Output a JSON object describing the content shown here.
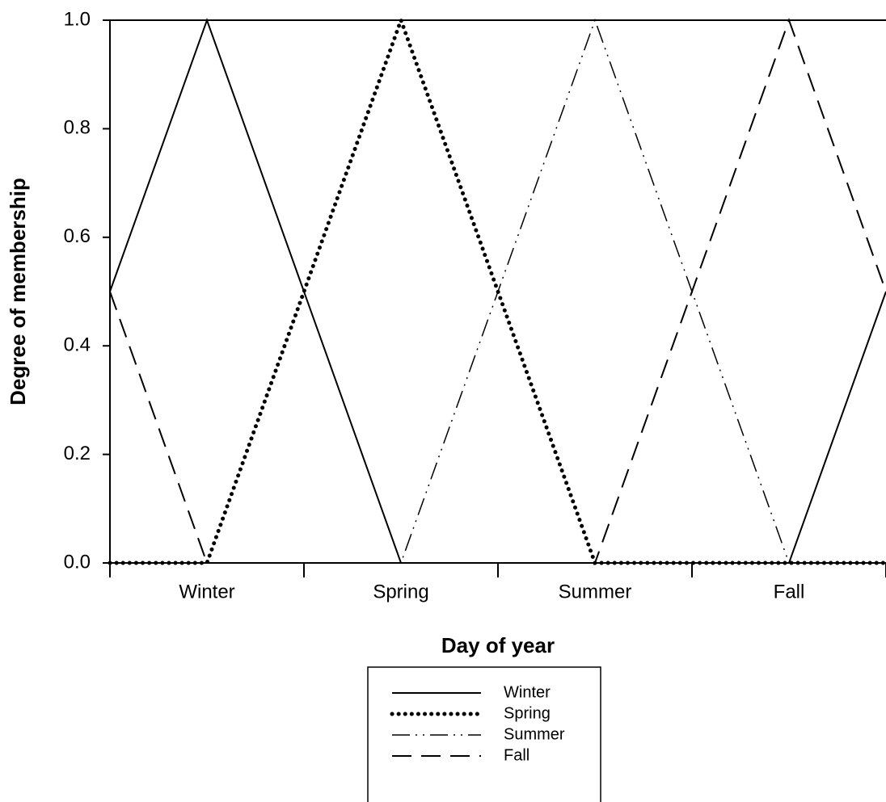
{
  "chart_data": {
    "type": "line",
    "ylabel": "Degree of membership",
    "xlabel": "Day of year",
    "categories": [
      "Winter",
      "Spring",
      "Summer",
      "Fall"
    ],
    "x": [
      0,
      0.5,
      1,
      1.5,
      2,
      2.5,
      3,
      3.5,
      4
    ],
    "xlim": [
      0,
      4
    ],
    "xticks": [
      0,
      1,
      2,
      3,
      4
    ],
    "ylim": [
      0,
      1
    ],
    "yticks": [
      {
        "value": 0,
        "label": "0.0"
      },
      0.2,
      0.4,
      0.6,
      0.8,
      {
        "value": 1,
        "label": "1.0"
      }
    ],
    "legend": "bottom",
    "series": [
      {
        "name": "Winter",
        "color": "#000000",
        "style": "solid",
        "values": [
          0.5,
          1,
          0.5,
          0,
          0,
          0,
          0,
          0,
          0.5
        ]
      },
      {
        "name": "Spring",
        "color": "#000000",
        "style": "dotted",
        "values": [
          0,
          0,
          0.5,
          1,
          0.5,
          0,
          0,
          0,
          0
        ]
      },
      {
        "name": "Summer",
        "color": "#000000",
        "style": "dashdotdot",
        "values": [
          0,
          0,
          0,
          0,
          0.5,
          1,
          0.5,
          0,
          0
        ]
      },
      {
        "name": "Fall",
        "color": "#000000",
        "style": "dashed",
        "values": [
          0.5,
          0,
          0,
          0,
          0,
          0,
          0.5,
          1,
          0.5
        ]
      }
    ]
  }
}
